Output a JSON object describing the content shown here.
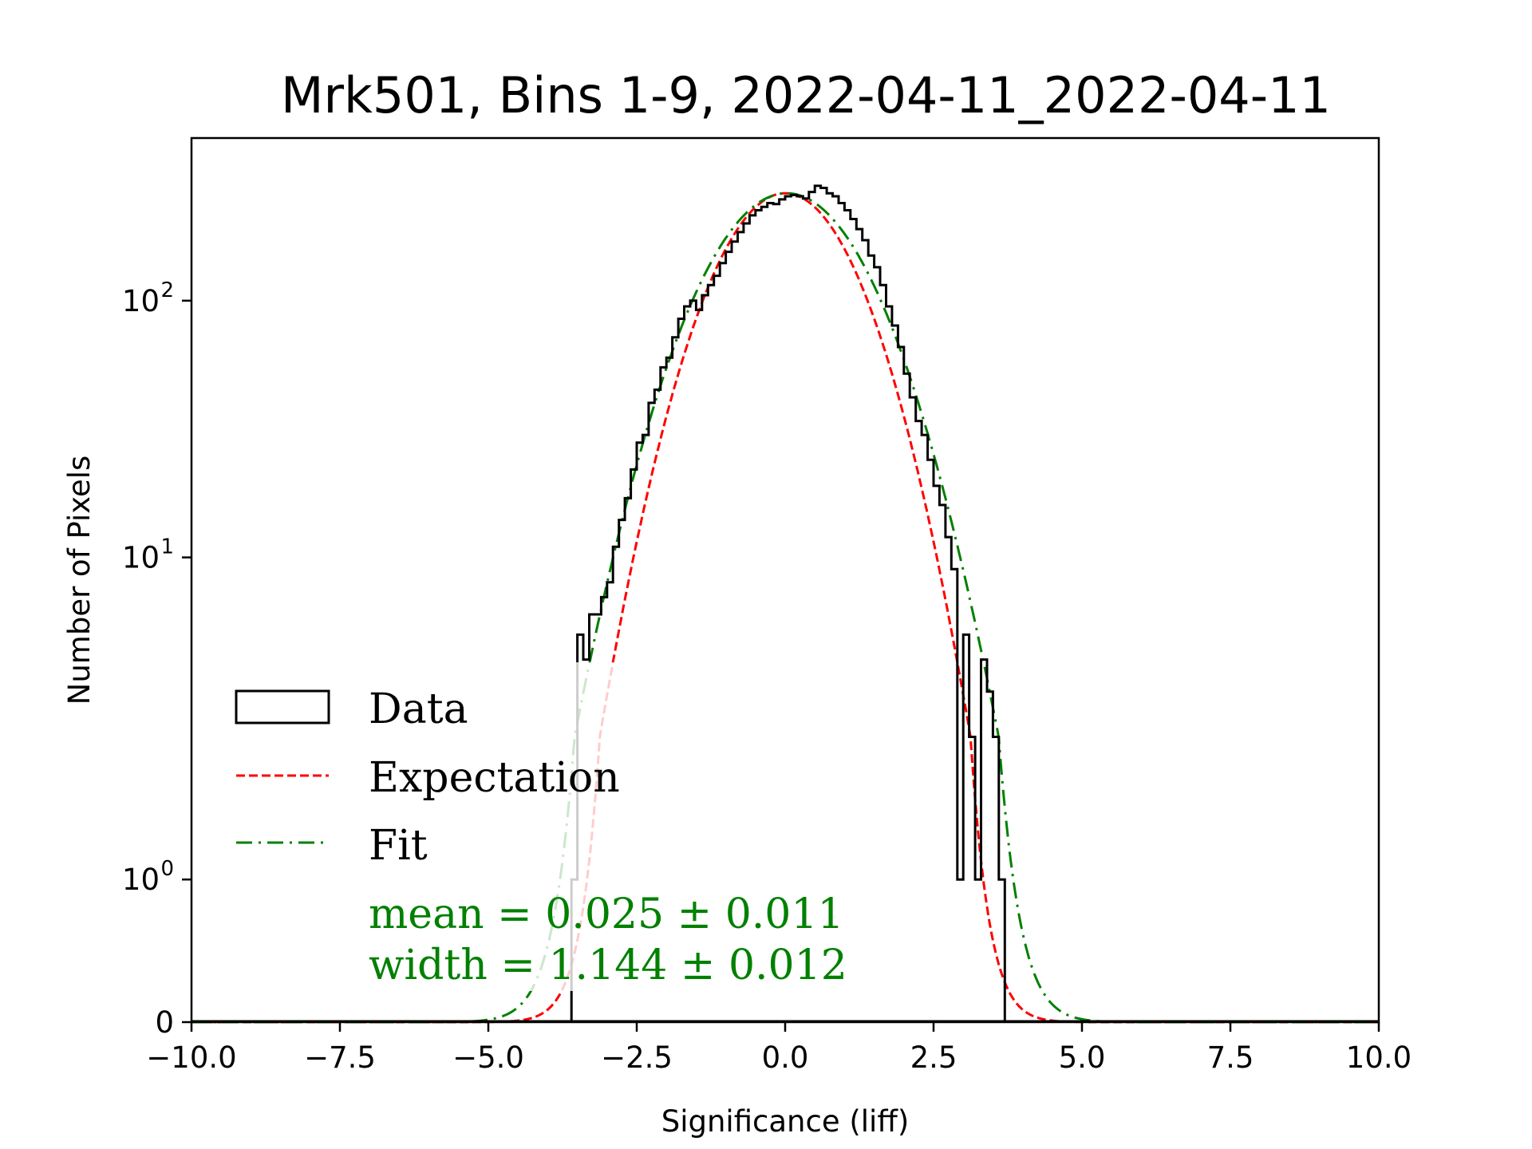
{
  "chart_data": {
    "type": "histogram",
    "title": "Mrk501, Bins 1-9, 2022-04-11_2022-04-11",
    "xlabel": "Significance (liff)",
    "ylabel": "Number of Pixels",
    "xlim": [
      -10,
      10
    ],
    "yscale": "symlog",
    "yscale_linthresh": 2,
    "ylim": [
      0,
      430
    ],
    "xticks": [
      -10,
      -7.5,
      -5,
      -2.5,
      0,
      2.5,
      5,
      7.5,
      10
    ],
    "xtick_labels": [
      "−10.0",
      "−7.5",
      "−5.0",
      "−2.5",
      "0.0",
      "2.5",
      "5.0",
      "7.5",
      "10.0"
    ],
    "yticks": [
      0,
      1,
      10,
      100
    ],
    "ytick_labels": [
      {
        "base": "0",
        "exp": ""
      },
      {
        "base": "10",
        "exp": "0"
      },
      {
        "base": "10",
        "exp": "1"
      },
      {
        "base": "10",
        "exp": "2"
      }
    ],
    "grid": false,
    "legend_position": "center-left",
    "legend": [
      {
        "label": "Data",
        "style": "box",
        "color": "#000000"
      },
      {
        "label": "Expectation",
        "style": "dashed",
        "color": "#ff0000"
      },
      {
        "label": "Fit",
        "style": "dashdot",
        "color": "#008000"
      }
    ],
    "annotation": {
      "lines": [
        "mean = 0.025 ± 0.011",
        "width = 1.144 ± 0.012"
      ],
      "color": "#008000"
    },
    "series": [
      {
        "name": "Data",
        "kind": "step",
        "color": "#000000",
        "bin_edges_start": -3.6,
        "bin_width": 0.1,
        "values": [
          1,
          5,
          4,
          6,
          6,
          7,
          8,
          11,
          14,
          17,
          22,
          28,
          30,
          40,
          45,
          55,
          60,
          72,
          85,
          95,
          100,
          92,
          105,
          115,
          125,
          140,
          155,
          170,
          185,
          200,
          215,
          225,
          232,
          240,
          238,
          248,
          255,
          258,
          255,
          250,
          265,
          280,
          275,
          262,
          255,
          240,
          225,
          208,
          190,
          172,
          150,
          135,
          115,
          95,
          80,
          66,
          52,
          42,
          34,
          30,
          24,
          19,
          16,
          12,
          9,
          1,
          5,
          2,
          1,
          4,
          3,
          2,
          1
        ]
      },
      {
        "name": "Expectation",
        "kind": "gaussian",
        "color": "#ff0000",
        "mean": 0.0,
        "sigma": 1.0,
        "amplitude": 262
      },
      {
        "name": "Fit",
        "kind": "gaussian",
        "color": "#008000",
        "mean": 0.025,
        "sigma": 1.144,
        "amplitude": 262
      }
    ]
  }
}
